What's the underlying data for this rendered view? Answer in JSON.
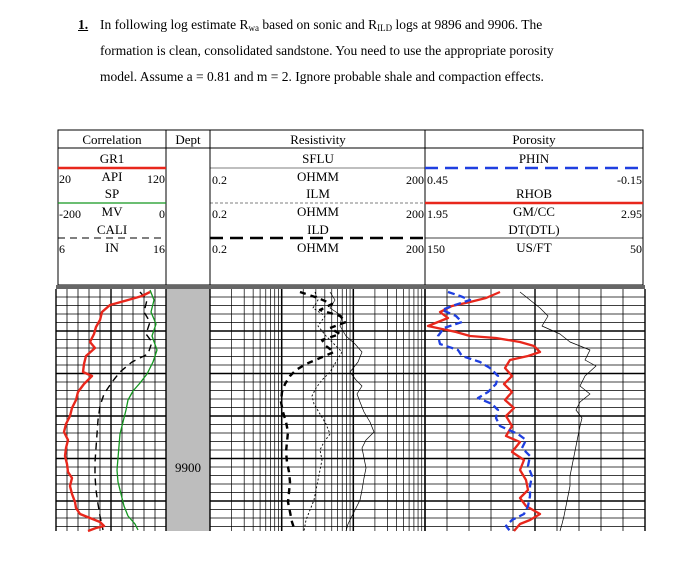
{
  "question": {
    "number": "1.",
    "line1_a": "In following log estimate R",
    "line1_sub_wa": "wa",
    "line1_b": " based on sonic and R",
    "line1_sub_ild": "ILD",
    "line1_c": " logs at 9896 and 9906. The",
    "line2": "formation is clean, consolidated sandstone. You need to use the appropriate porosity",
    "line3": "model. Assume a = 0.81 and m = 2. Ignore probable shale and compaction effects."
  },
  "header": {
    "track1": {
      "title": "Correlation",
      "curves": [
        {
          "name": "GR1",
          "unit": "API",
          "left": "20",
          "right": "120"
        },
        {
          "name": "SP",
          "unit": "MV",
          "left": "-200",
          "right": "0"
        },
        {
          "name": "CALI",
          "unit": "IN",
          "left": "6",
          "right": "16"
        }
      ]
    },
    "depth": {
      "title": "Dept"
    },
    "track2": {
      "title": "Resistivity",
      "curves": [
        {
          "name": "SFLU",
          "unit": "OHMM",
          "left": "0.2",
          "right": "200"
        },
        {
          "name": "ILM",
          "unit": "OHMM",
          "left": "0.2",
          "right": "200"
        },
        {
          "name": "ILD",
          "unit": "OHMM",
          "left": "0.2",
          "right": "200"
        }
      ]
    },
    "track3": {
      "title": "Porosity",
      "curves": [
        {
          "name": "PHIN",
          "unit": "",
          "left": "0.45",
          "right": "-0.15"
        },
        {
          "name": "RHOB",
          "unit": "GM/CC",
          "left": "1.95",
          "right": "2.95"
        },
        {
          "name": "DT(DTL)",
          "unit": "US/FT",
          "left": "150",
          "right": "50"
        }
      ]
    }
  },
  "depth_label": "9900",
  "colors": {
    "gr": "#e8271c",
    "sp": "#13961f",
    "phin": "#1f3fe0",
    "rhob": "#e8271c",
    "depth_track": "#bdbdbd"
  }
}
